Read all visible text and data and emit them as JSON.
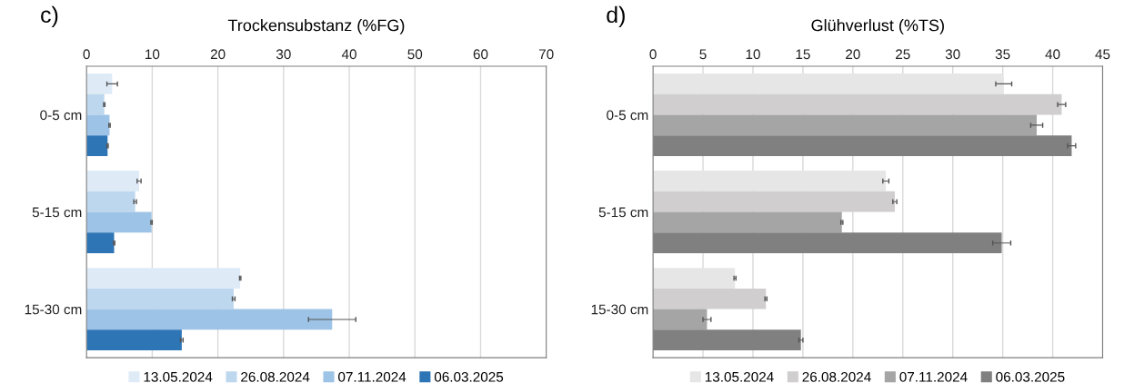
{
  "chart_data": [
    {
      "type": "bar",
      "orientation": "horizontal",
      "title": "Trockensubstanz (%FG)",
      "annotations": [
        "c)"
      ],
      "categories": [
        "0-5 cm",
        "5-15 cm",
        "15-30 cm"
      ],
      "xlim": [
        0,
        70
      ],
      "xticks": [
        0,
        10,
        20,
        30,
        40,
        50,
        60,
        70
      ],
      "grid": "x",
      "legend": "bottom",
      "series": [
        {
          "name": "13.05.2024",
          "color": "#deebf7",
          "values": [
            3.9,
            8.0,
            23.4
          ],
          "errors": [
            0.8,
            0.3,
            0.1
          ]
        },
        {
          "name": "26.08.2024",
          "color": "#bdd7ee",
          "values": [
            2.7,
            7.4,
            22.4
          ],
          "errors": [
            0.1,
            0.2,
            0.2
          ]
        },
        {
          "name": "07.11.2024",
          "color": "#9dc3e6",
          "values": [
            3.5,
            9.9,
            37.4
          ],
          "errors": [
            0.1,
            0.1,
            3.6
          ]
        },
        {
          "name": "06.03.2025",
          "color": "#2e75b6",
          "values": [
            3.2,
            4.2,
            14.5
          ],
          "errors": [
            0.1,
            0.1,
            0.2
          ]
        }
      ]
    },
    {
      "type": "bar",
      "orientation": "horizontal",
      "title": "Glühverlust (%TS)",
      "annotations": [
        "d)"
      ],
      "categories": [
        "0-5 cm",
        "5-15 cm",
        "15-30 cm"
      ],
      "xlim": [
        0,
        45
      ],
      "xticks": [
        0,
        5,
        10,
        15,
        20,
        25,
        30,
        35,
        40,
        45
      ],
      "grid": "x",
      "legend": "bottom",
      "series": [
        {
          "name": "13.05.2024",
          "color": "#e6e6e6",
          "values": [
            35.1,
            23.3,
            8.2
          ],
          "errors": [
            0.8,
            0.3,
            0.1
          ]
        },
        {
          "name": "26.08.2024",
          "color": "#d0cece",
          "values": [
            40.9,
            24.2,
            11.3
          ],
          "errors": [
            0.4,
            0.2,
            0.1
          ]
        },
        {
          "name": "07.11.2024",
          "color": "#a5a5a5",
          "values": [
            38.4,
            18.9,
            5.4
          ],
          "errors": [
            0.6,
            0.1,
            0.4
          ]
        },
        {
          "name": "06.03.2025",
          "color": "#808080",
          "values": [
            41.9,
            34.9,
            14.8
          ],
          "errors": [
            0.4,
            0.9,
            0.2
          ]
        }
      ]
    }
  ]
}
